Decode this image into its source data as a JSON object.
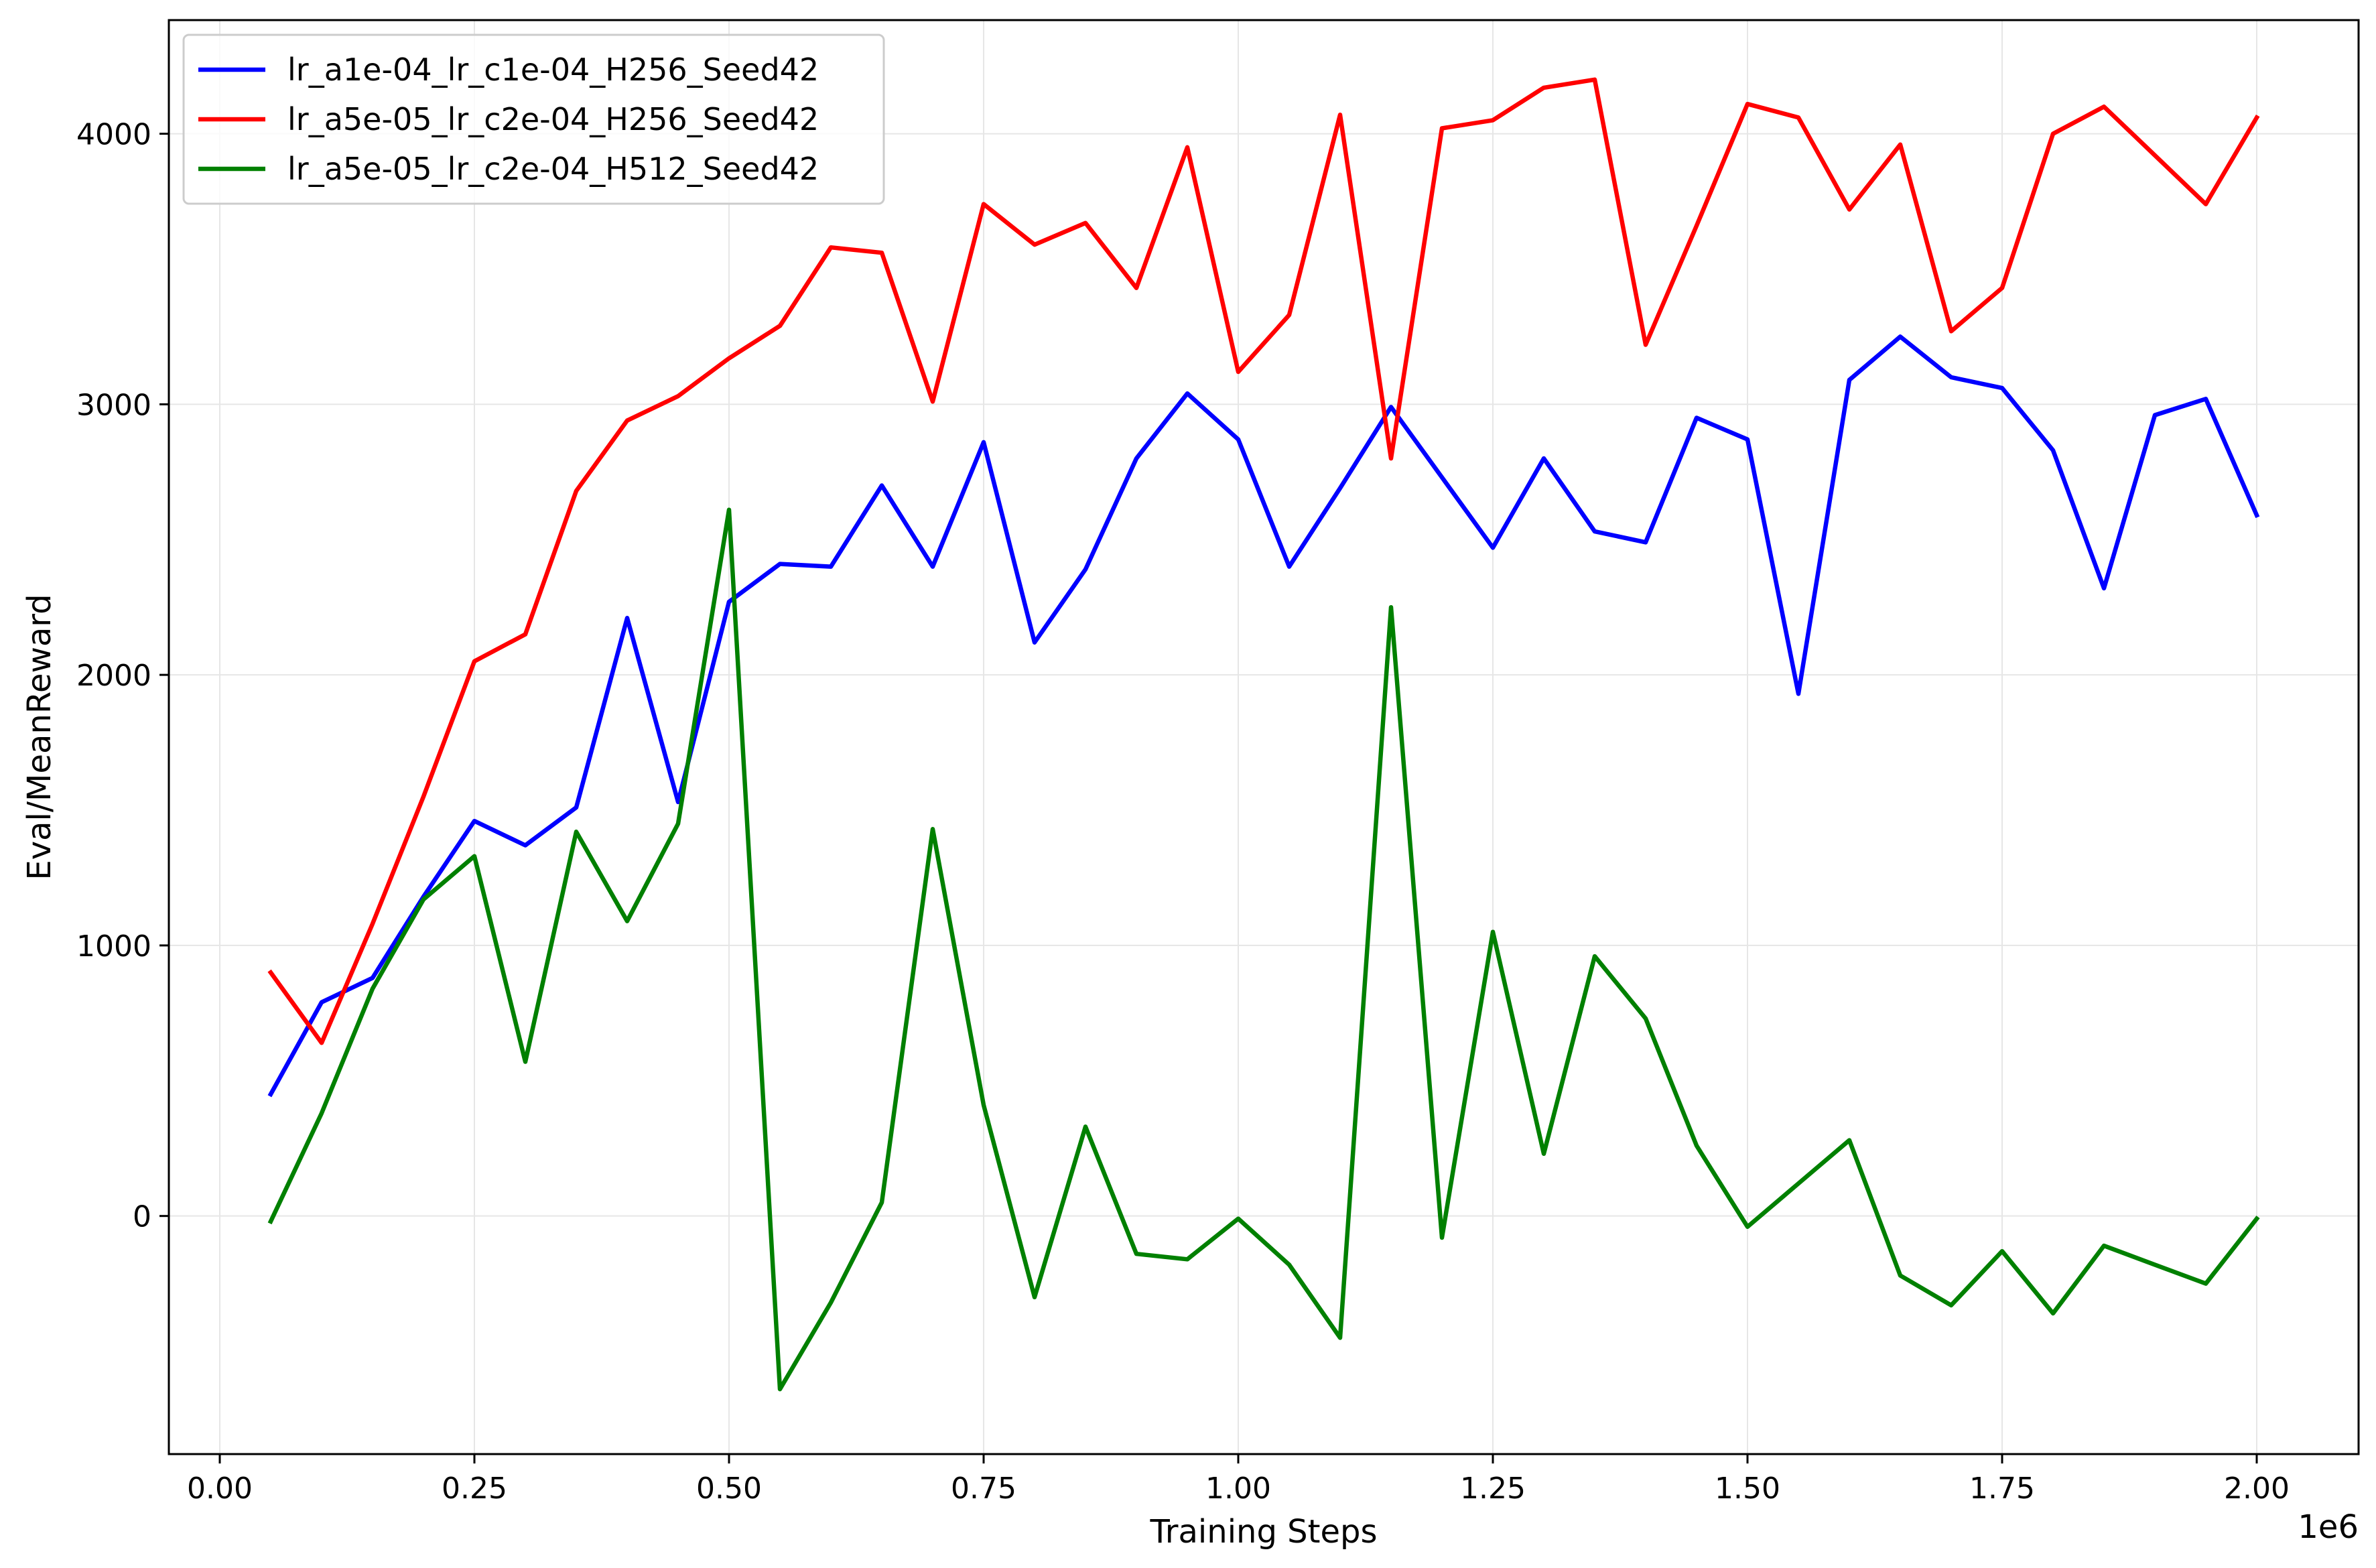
{
  "chart_data": {
    "type": "line",
    "title": "",
    "xlabel": "Training Steps",
    "ylabel": "Eval/MeanReward",
    "x_offset_label": "1e6",
    "xlim": [
      -0.05,
      2.1
    ],
    "ylim": [
      -880,
      4420
    ],
    "x_ticks": [
      0.0,
      0.25,
      0.5,
      0.75,
      1.0,
      1.25,
      1.5,
      1.75,
      2.0
    ],
    "x_tick_labels": [
      "0.00",
      "0.25",
      "0.50",
      "0.75",
      "1.00",
      "1.25",
      "1.50",
      "1.75",
      "2.00"
    ],
    "y_ticks": [
      0,
      1000,
      2000,
      3000,
      4000
    ],
    "y_tick_labels": [
      "0",
      "1000",
      "2000",
      "3000",
      "4000"
    ],
    "grid": true,
    "legend_position": "top-left",
    "x": [
      0.05,
      0.1,
      0.15,
      0.2,
      0.25,
      0.3,
      0.35,
      0.4,
      0.45,
      0.5,
      0.55,
      0.6,
      0.65,
      0.7,
      0.75,
      0.8,
      0.85,
      0.9,
      0.95,
      1.0,
      1.05,
      1.1,
      1.15,
      1.2,
      1.25,
      1.3,
      1.35,
      1.4,
      1.45,
      1.5,
      1.55,
      1.6,
      1.65,
      1.7,
      1.75,
      1.8,
      1.85,
      1.9,
      1.95,
      2.0
    ],
    "series": [
      {
        "name": "lr_a1e-04_lr_c1e-04_H256_Seed42",
        "color": "#0000ff",
        "values": [
          450,
          790,
          880,
          1180,
          1460,
          1370,
          1510,
          2210,
          1530,
          2270,
          2410,
          2400,
          2700,
          2400,
          2860,
          2120,
          2390,
          2800,
          3040,
          2870,
          2400,
          2690,
          2990,
          2730,
          2470,
          2800,
          2530,
          2490,
          2950,
          2870,
          1930,
          3090,
          3250,
          3100,
          3060,
          2830,
          2320,
          2960,
          3020,
          2590
        ]
      },
      {
        "name": "lr_a5e-05_lr_c2e-04_H256_Seed42",
        "color": "#ff0000",
        "values": [
          900,
          640,
          1080,
          1550,
          2050,
          2150,
          2680,
          2940,
          3030,
          3170,
          3290,
          3580,
          3560,
          3010,
          3740,
          3590,
          3670,
          3430,
          3950,
          3120,
          3330,
          4070,
          2800,
          4020,
          4050,
          4170,
          4200,
          3220,
          3660,
          4110,
          4060,
          3720,
          3960,
          3270,
          3430,
          4000,
          4100,
          3920,
          3740,
          4060
        ]
      },
      {
        "name": "lr_a5e-05_lr_c2e-04_H512_Seed42",
        "color": "#008000",
        "values": [
          -20,
          380,
          840,
          1170,
          1330,
          570,
          1420,
          1090,
          1450,
          2610,
          -640,
          -320,
          50,
          1430,
          410,
          -300,
          330,
          -140,
          -160,
          -10,
          -180,
          -450,
          2250,
          -80,
          1050,
          230,
          960,
          730,
          260,
          -40,
          120,
          280,
          -220,
          -330,
          -130,
          -360,
          -110,
          -180,
          -250,
          -10
        ]
      }
    ]
  }
}
